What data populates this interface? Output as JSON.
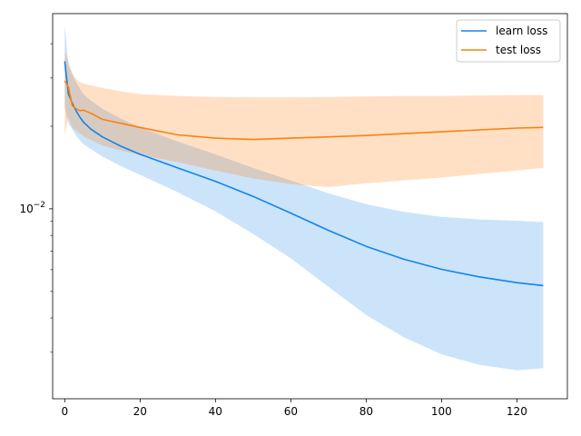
{
  "chart_data": {
    "type": "line",
    "yscale": "log",
    "xlim": [
      -3.2,
      133.4
    ],
    "ylim": [
      0.00203,
      0.0515
    ],
    "x_ticks": [
      0,
      20,
      40,
      60,
      80,
      100,
      120
    ],
    "y_major_ticks": [
      0.01
    ],
    "y_major_tick_labels": [
      "10^-2"
    ],
    "y_minor_ticks": [
      0.003,
      0.004,
      0.005,
      0.006,
      0.007,
      0.008,
      0.009,
      0.02,
      0.03,
      0.04
    ],
    "legend_position": "top-right",
    "grid": false,
    "x": [
      0,
      1,
      2,
      3,
      4,
      5,
      7,
      10,
      15,
      20,
      30,
      40,
      50,
      60,
      70,
      80,
      90,
      100,
      110,
      120,
      127
    ],
    "series": [
      {
        "name": "learn loss",
        "color": "#1383ea",
        "values": [
          0.0345,
          0.0262,
          0.0243,
          0.0228,
          0.0216,
          0.0207,
          0.0195,
          0.0183,
          0.0169,
          0.0158,
          0.0141,
          0.0126,
          0.0111,
          0.00965,
          0.00835,
          0.0073,
          0.00655,
          0.00602,
          0.00565,
          0.00538,
          0.00525
        ],
        "band_low": [
          0.0235,
          0.0205,
          0.0195,
          0.0185,
          0.0178,
          0.0172,
          0.0165,
          0.0155,
          0.0143,
          0.0133,
          0.0115,
          0.0098,
          0.0081,
          0.0066,
          0.0052,
          0.0041,
          0.0034,
          0.00295,
          0.0027,
          0.00258,
          0.00262
        ],
        "band_high": [
          0.0468,
          0.0335,
          0.031,
          0.029,
          0.0275,
          0.0262,
          0.0248,
          0.0232,
          0.0213,
          0.0198,
          0.0176,
          0.0158,
          0.0141,
          0.0127,
          0.0114,
          0.0104,
          0.00975,
          0.00935,
          0.00915,
          0.00905,
          0.00895
        ]
      },
      {
        "name": "test loss",
        "color": "#ff7f0e",
        "values": [
          0.0293,
          0.0278,
          0.0238,
          0.0232,
          0.0228,
          0.0229,
          0.0223,
          0.0212,
          0.0205,
          0.0198,
          0.0186,
          0.0181,
          0.0179,
          0.0181,
          0.0183,
          0.0185,
          0.0188,
          0.0191,
          0.0194,
          0.0197,
          0.0198
        ],
        "band_low": [
          0.0185,
          0.0215,
          0.0198,
          0.0193,
          0.0188,
          0.0184,
          0.0178,
          0.017,
          0.0163,
          0.0157,
          0.0148,
          0.0138,
          0.0129,
          0.0123,
          0.012,
          0.0124,
          0.0127,
          0.013,
          0.0134,
          0.0138,
          0.0141
        ],
        "band_high": [
          0.0375,
          0.0345,
          0.0312,
          0.0298,
          0.029,
          0.0286,
          0.0282,
          0.0276,
          0.0268,
          0.0262,
          0.0258,
          0.0256,
          0.0255,
          0.0255,
          0.0256,
          0.0257,
          0.0258,
          0.0258,
          0.0259,
          0.026,
          0.026
        ]
      }
    ]
  }
}
